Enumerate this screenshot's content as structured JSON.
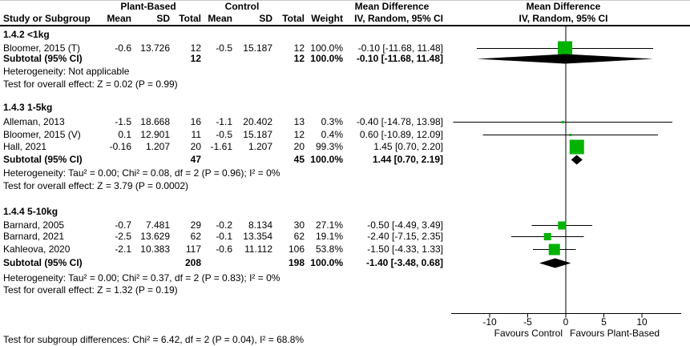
{
  "header": {
    "study_col": "Study or Subgroup",
    "mean": "Mean",
    "sd": "SD",
    "total": "Total",
    "weight": "Weight",
    "group1": "Plant-Based",
    "group2": "Control",
    "md_title": "Mean Difference",
    "md_method": "IV, Random, 95% CI"
  },
  "colors": {
    "square": "#00b300",
    "diamond": "#000000",
    "axis": "#000000"
  },
  "chart_data": {
    "type": "forest",
    "effect_measure": "Mean Difference",
    "method": "IV, Random, 95% CI",
    "group_labels": [
      "Plant-Based",
      "Control"
    ],
    "subgroups": [
      {
        "title": "1.4.2 <1kg",
        "studies": [
          {
            "name": "Bloomer, 2015 (T)",
            "mean1": "-0.6",
            "sd1": "13.726",
            "n1": "12",
            "mean2": "-0.5",
            "sd2": "15.187",
            "n2": "12",
            "weight": "100.0%",
            "weight_pct": 100.0,
            "md": -0.1,
            "ci_low": -11.68,
            "ci_high": 11.48,
            "ci_text": "-0.10 [-11.68, 11.48]"
          }
        ],
        "subtotal": {
          "label": "Subtotal (95% CI)",
          "n1": "12",
          "n2": "12",
          "weight": "100.0%",
          "md": -0.1,
          "ci_low": -11.68,
          "ci_high": 11.48,
          "ci_text": "-0.10 [-11.68, 11.48]"
        },
        "heterogeneity": "Heterogeneity: Not applicable",
        "overall_effect": "Test for overall effect: Z = 0.02 (P = 0.99)"
      },
      {
        "title": "1.4.3 1-5kg",
        "studies": [
          {
            "name": "Alleman, 2013",
            "mean1": "-1.5",
            "sd1": "18.668",
            "n1": "16",
            "mean2": "-1.1",
            "sd2": "20.402",
            "n2": "13",
            "weight": "0.3%",
            "weight_pct": 0.3,
            "md": -0.4,
            "ci_low": -14.78,
            "ci_high": 13.98,
            "ci_text": "-0.40 [-14.78, 13.98]"
          },
          {
            "name": "Bloomer, 2015 (V)",
            "mean1": "0.1",
            "sd1": "12.901",
            "n1": "11",
            "mean2": "-0.5",
            "sd2": "15.187",
            "n2": "12",
            "weight": "0.4%",
            "weight_pct": 0.4,
            "md": 0.6,
            "ci_low": -10.89,
            "ci_high": 12.09,
            "ci_text": "0.60 [-10.89, 12.09]"
          },
          {
            "name": "Hall, 2021",
            "mean1": "-0.16",
            "sd1": "1.207",
            "n1": "20",
            "mean2": "-1.61",
            "sd2": "1.207",
            "n2": "20",
            "weight": "99.3%",
            "weight_pct": 99.3,
            "md": 1.45,
            "ci_low": 0.7,
            "ci_high": 2.2,
            "ci_text": "1.45 [0.70, 2.20]"
          }
        ],
        "subtotal": {
          "label": "Subtotal (95% CI)",
          "n1": "47",
          "n2": "45",
          "weight": "100.0%",
          "md": 1.44,
          "ci_low": 0.7,
          "ci_high": 2.19,
          "ci_text": "1.44 [0.70, 2.19]"
        },
        "heterogeneity": "Heterogeneity: Tau² = 0.00; Chi² = 0.08, df = 2 (P = 0.96); I² = 0%",
        "overall_effect": "Test for overall effect: Z = 3.79 (P = 0.0002)"
      },
      {
        "title": "1.4.4 5-10kg",
        "studies": [
          {
            "name": "Barnard, 2005",
            "mean1": "-0.7",
            "sd1": "7.481",
            "n1": "29",
            "mean2": "-0.2",
            "sd2": "8.134",
            "n2": "30",
            "weight": "27.1%",
            "weight_pct": 27.1,
            "md": -0.5,
            "ci_low": -4.49,
            "ci_high": 3.49,
            "ci_text": "-0.50 [-4.49, 3.49]"
          },
          {
            "name": "Barnard, 2021",
            "mean1": "-2.5",
            "sd1": "13.629",
            "n1": "62",
            "mean2": "-0.1",
            "sd2": "13.354",
            "n2": "62",
            "weight": "19.1%",
            "weight_pct": 19.1,
            "md": -2.4,
            "ci_low": -7.15,
            "ci_high": 2.35,
            "ci_text": "-2.40 [-7.15, 2.35]"
          },
          {
            "name": "Kahleova, 2020",
            "mean1": "-2.1",
            "sd1": "10.383",
            "n1": "117",
            "mean2": "-0.6",
            "sd2": "11.112",
            "n2": "106",
            "weight": "53.8%",
            "weight_pct": 53.8,
            "md": -1.5,
            "ci_low": -4.33,
            "ci_high": 1.33,
            "ci_text": "-1.50 [-4.33, 1.33]"
          }
        ],
        "subtotal": {
          "label": "Subtotal (95% CI)",
          "n1": "208",
          "n2": "198",
          "weight": "100.0%",
          "md": -1.4,
          "ci_low": -3.48,
          "ci_high": 0.68,
          "ci_text": "-1.40 [-3.48, 0.68]"
        },
        "heterogeneity": "Heterogeneity: Tau² = 0.00; Chi² = 0.37, df = 2 (P = 0.83); I² = 0%",
        "overall_effect": "Test for overall effect: Z = 1.32 (P = 0.19)"
      }
    ],
    "axis": {
      "ticks": [
        -10,
        -5,
        0,
        5,
        10
      ],
      "labels": [
        "-10",
        "-5",
        "0",
        "5",
        "10"
      ],
      "min": -15.0,
      "max": 15.2,
      "favours_left": "Favours Control",
      "favours_right": "Favours Plant-Based"
    },
    "footer": "Test for subgroup differences: Chi² = 6.42, df = 2 (P = 0.04), I² = 68.8%"
  }
}
